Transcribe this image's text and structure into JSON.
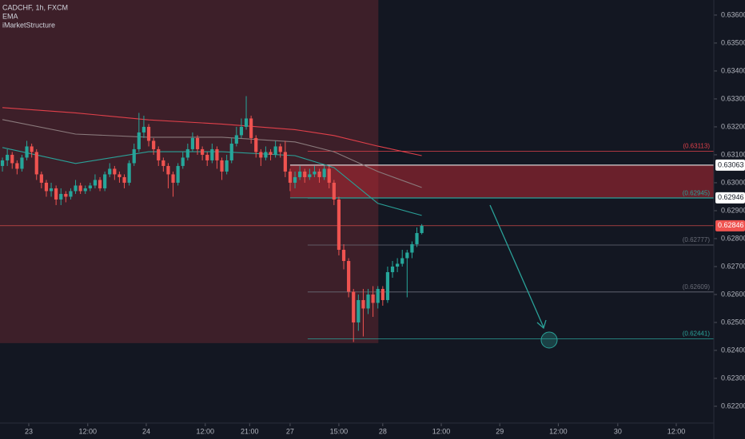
{
  "chart_data": {
    "type": "candlestick",
    "title": "CADCHF, 1h, FXCM",
    "indicators": [
      "EMA",
      "iMarketStructure"
    ],
    "up_color": "#26a69a",
    "down_color": "#ef5350",
    "candles": {
      "open": [
        0.6306,
        0.6308,
        0.631,
        0.6307,
        0.6305,
        0.6309,
        0.6313,
        0.6311,
        0.6303,
        0.63,
        0.6297,
        0.6298,
        0.6294,
        0.6296,
        0.6295,
        0.6297,
        0.6299,
        0.6297,
        0.6298,
        0.6299,
        0.6301,
        0.6298,
        0.6303,
        0.6305,
        0.6303,
        0.6302,
        0.63,
        0.6307,
        0.6312,
        0.6318,
        0.632,
        0.6315,
        0.6312,
        0.6308,
        0.6306,
        0.6303,
        0.63,
        0.6306,
        0.6309,
        0.6312,
        0.6316,
        0.6312,
        0.631,
        0.6308,
        0.6312,
        0.6308,
        0.6304,
        0.6308,
        0.6314,
        0.6317,
        0.632,
        0.6323,
        0.6316,
        0.6311,
        0.6309,
        0.6311,
        0.631,
        0.6313,
        0.6311,
        0.6304,
        0.63,
        0.6302,
        0.6304,
        0.6302,
        0.6303,
        0.6304,
        0.6302,
        0.6305,
        0.63,
        0.6294,
        0.6276,
        0.6272,
        0.6261,
        0.625,
        0.6258,
        0.6255,
        0.626,
        0.6257,
        0.6262,
        0.6258,
        0.6268,
        0.627,
        0.6271,
        0.6273,
        0.6275,
        0.6278,
        0.6282
      ],
      "high": [
        0.6309,
        0.6312,
        0.6311,
        0.6308,
        0.631,
        0.6315,
        0.6314,
        0.6312,
        0.6304,
        0.6301,
        0.63,
        0.6299,
        0.6298,
        0.6297,
        0.6298,
        0.6301,
        0.63,
        0.6299,
        0.63,
        0.6303,
        0.6302,
        0.6304,
        0.6307,
        0.6306,
        0.6304,
        0.6303,
        0.6308,
        0.6314,
        0.6325,
        0.6324,
        0.6321,
        0.6316,
        0.6313,
        0.6309,
        0.6307,
        0.6304,
        0.6307,
        0.6311,
        0.6314,
        0.6318,
        0.6317,
        0.6313,
        0.6311,
        0.6314,
        0.6313,
        0.6309,
        0.631,
        0.6316,
        0.632,
        0.6323,
        0.6331,
        0.6324,
        0.6317,
        0.6312,
        0.6313,
        0.6312,
        0.6315,
        0.6314,
        0.6315,
        0.6305,
        0.6304,
        0.6306,
        0.6305,
        0.6305,
        0.6306,
        0.6305,
        0.6306,
        0.6306,
        0.6301,
        0.6295,
        0.6278,
        0.6273,
        0.6262,
        0.626,
        0.6262,
        0.6262,
        0.6263,
        0.6263,
        0.6263,
        0.627,
        0.6272,
        0.6273,
        0.6276,
        0.6276,
        0.6279,
        0.6284,
        0.62852
      ],
      "low": [
        0.6304,
        0.6306,
        0.6305,
        0.6303,
        0.6304,
        0.6308,
        0.6309,
        0.6301,
        0.6298,
        0.6295,
        0.6295,
        0.6292,
        0.6292,
        0.6293,
        0.6294,
        0.6296,
        0.6296,
        0.6296,
        0.6297,
        0.6298,
        0.6297,
        0.6297,
        0.6302,
        0.6301,
        0.63,
        0.6298,
        0.6299,
        0.6306,
        0.6311,
        0.6316,
        0.6313,
        0.631,
        0.6306,
        0.6304,
        0.6298,
        0.6295,
        0.6299,
        0.6305,
        0.6308,
        0.6311,
        0.631,
        0.6308,
        0.6306,
        0.6307,
        0.6305,
        0.6301,
        0.6303,
        0.6307,
        0.6313,
        0.6316,
        0.6319,
        0.6314,
        0.6309,
        0.6306,
        0.6308,
        0.6308,
        0.6309,
        0.6309,
        0.6302,
        0.6297,
        0.6298,
        0.6301,
        0.63,
        0.6301,
        0.6302,
        0.63,
        0.6301,
        0.6298,
        0.6292,
        0.6274,
        0.6269,
        0.6259,
        0.6243,
        0.6247,
        0.6245,
        0.6253,
        0.6252,
        0.6255,
        0.6256,
        0.6257,
        0.6266,
        0.6268,
        0.627,
        0.6259,
        0.6273,
        0.6277,
        0.62815
      ],
      "close": [
        0.6308,
        0.631,
        0.6307,
        0.6305,
        0.6309,
        0.6313,
        0.6311,
        0.6303,
        0.63,
        0.6297,
        0.6298,
        0.6294,
        0.6296,
        0.6295,
        0.6297,
        0.6299,
        0.6297,
        0.6298,
        0.6299,
        0.6301,
        0.6298,
        0.6303,
        0.6305,
        0.6303,
        0.6302,
        0.63,
        0.6307,
        0.6312,
        0.6318,
        0.632,
        0.6315,
        0.6312,
        0.6308,
        0.6306,
        0.6303,
        0.63,
        0.6306,
        0.6309,
        0.6312,
        0.6316,
        0.6312,
        0.631,
        0.6308,
        0.6312,
        0.6308,
        0.6304,
        0.6308,
        0.6314,
        0.6317,
        0.632,
        0.6323,
        0.6316,
        0.6311,
        0.6309,
        0.6311,
        0.631,
        0.6313,
        0.6311,
        0.6304,
        0.63,
        0.6302,
        0.6304,
        0.6302,
        0.6303,
        0.6304,
        0.6302,
        0.6305,
        0.63,
        0.6294,
        0.6276,
        0.6272,
        0.6261,
        0.625,
        0.6258,
        0.6255,
        0.626,
        0.6257,
        0.6262,
        0.6258,
        0.6268,
        0.627,
        0.6271,
        0.6273,
        0.6275,
        0.6278,
        0.6282,
        0.62846
      ]
    },
    "series": [
      {
        "color": "#e0404a",
        "x": [
          0,
          15,
          30,
          45,
          60,
          68,
          77,
          86
        ],
        "values": [
          0.63269,
          0.6325,
          0.63225,
          0.6321,
          0.6319,
          0.63169,
          0.63131,
          0.63097
        ]
      },
      {
        "color": "#8a7a7c",
        "x": [
          0,
          15,
          30,
          45,
          60,
          68,
          77,
          86
        ],
        "values": [
          0.63226,
          0.63174,
          0.63163,
          0.63163,
          0.63146,
          0.63111,
          0.6304,
          0.62983
        ]
      },
      {
        "color": "#2aa198",
        "x": [
          0,
          15,
          30,
          45,
          60,
          68,
          77,
          86
        ],
        "values": [
          0.63126,
          0.63069,
          0.63111,
          0.63111,
          0.63097,
          0.63054,
          0.62926,
          0.62883
        ]
      }
    ],
    "levels": [
      {
        "value": 0.63113,
        "label": "(0.63113)",
        "color": "#e0404a"
      },
      {
        "value": 0.62945,
        "label": "(0.62945)",
        "color": "#2aa198"
      },
      {
        "value": 0.62777,
        "label": "(0.62777)",
        "color": "#6a6d78"
      },
      {
        "value": 0.62609,
        "label": "(0.62609)",
        "color": "#6a6d78"
      },
      {
        "value": 0.62441,
        "label": "(0.62441)",
        "color": "#2aa198"
      }
    ],
    "zone": {
      "top": 0.63063,
      "bottom": 0.62946,
      "color": "#b22833"
    },
    "last_price": 0.62846,
    "highlight_bottom": 0.62426,
    "highlight_end": 77.1,
    "xlim": [
      -0.5,
      145.9
    ],
    "ylim": [
      0.6214,
      0.63654
    ],
    "xticks": [
      {
        "value": 5.4,
        "label": "23"
      },
      {
        "value": 17.5,
        "label": "12:00"
      },
      {
        "value": 29.5,
        "label": "24"
      },
      {
        "value": 41.6,
        "label": "12:00"
      },
      {
        "value": 50.7,
        "label": "21:00"
      },
      {
        "value": 59,
        "label": "27"
      },
      {
        "value": 69,
        "label": "15:00"
      },
      {
        "value": 78,
        "label": "28"
      },
      {
        "value": 90,
        "label": "12:00"
      },
      {
        "value": 102,
        "label": "29"
      },
      {
        "value": 114,
        "label": "12:00"
      },
      {
        "value": 126.2,
        "label": "30"
      },
      {
        "value": 138.2,
        "label": "12:00"
      }
    ],
    "yticks": [
      {
        "value": 0.636,
        "label": "0.63600"
      },
      {
        "value": 0.635,
        "label": "0.63500"
      },
      {
        "value": 0.634,
        "label": "0.63400"
      },
      {
        "value": 0.633,
        "label": "0.63300"
      },
      {
        "value": 0.632,
        "label": "0.63200"
      },
      {
        "value": 0.631,
        "label": "0.63100"
      },
      {
        "value": 0.63,
        "label": "0.63000"
      },
      {
        "value": 0.629,
        "label": "0.62900"
      },
      {
        "value": 0.628,
        "label": "0.62800"
      },
      {
        "value": 0.627,
        "label": "0.62700"
      },
      {
        "value": 0.626,
        "label": "0.62600"
      },
      {
        "value": 0.625,
        "label": "0.62500"
      },
      {
        "value": 0.624,
        "label": "0.62400"
      },
      {
        "value": 0.623,
        "label": "0.62300"
      },
      {
        "value": 0.622,
        "label": "0.62200"
      }
    ]
  }
}
